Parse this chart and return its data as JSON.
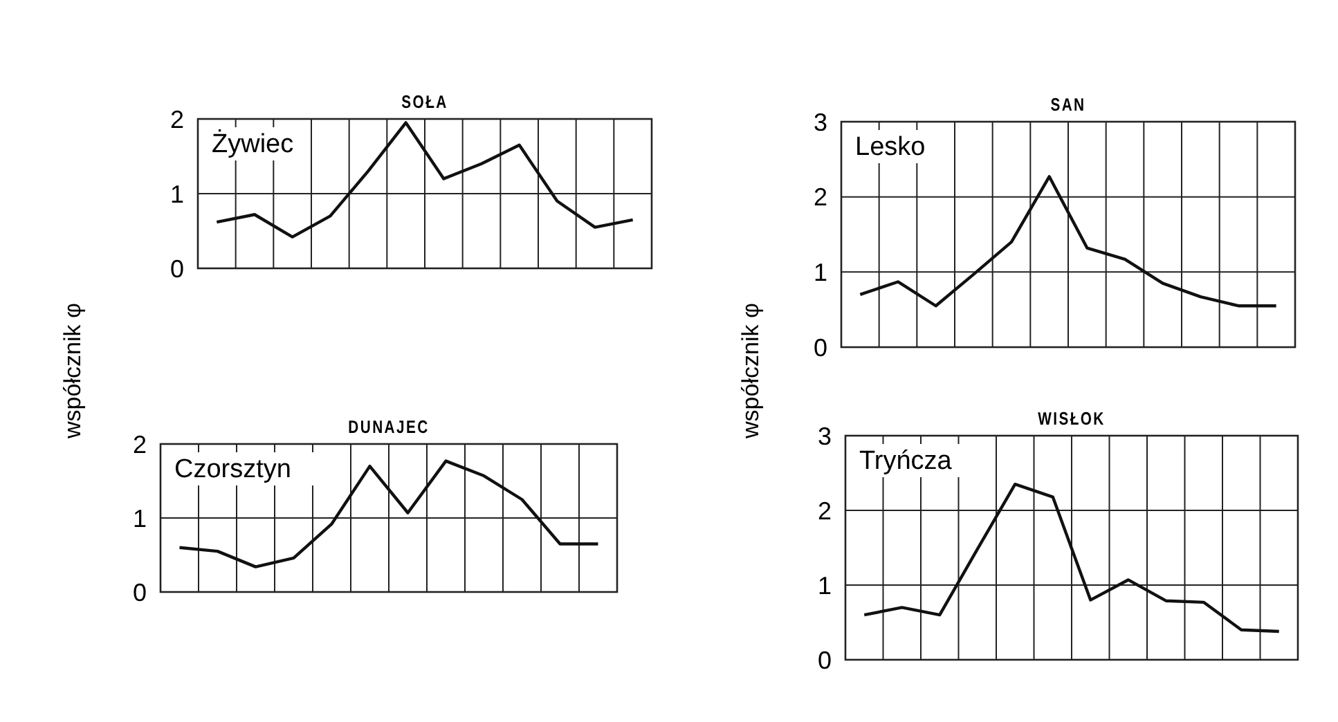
{
  "chart_data": [
    {
      "type": "line",
      "title": "SOŁA",
      "ylabel": "współcznik φ",
      "annotations": [
        "Żywiec"
      ],
      "categories": [
        null,
        null,
        null,
        null,
        null,
        null,
        null,
        null,
        null,
        null,
        null,
        null
      ],
      "series": [
        {
          "color": "#111111",
          "values": [
            0.62,
            0.72,
            0.42,
            0.7,
            1.3,
            1.95,
            1.2,
            1.4,
            1.65,
            0.9,
            0.55,
            0.65
          ]
        }
      ],
      "ylim": [
        0,
        2
      ],
      "yticks": [
        0,
        1,
        2
      ],
      "grid": true,
      "marker": "none",
      "line_style": "solid"
    },
    {
      "type": "line",
      "title": "SAN",
      "ylabel": "współcznik φ",
      "annotations": [
        "Lesko"
      ],
      "categories": [
        null,
        null,
        null,
        null,
        null,
        null,
        null,
        null,
        null,
        null,
        null,
        null
      ],
      "series": [
        {
          "color": "#111111",
          "values": [
            0.7,
            0.87,
            0.55,
            0.97,
            1.4,
            2.27,
            1.32,
            1.17,
            0.85,
            0.67,
            0.55,
            0.55
          ]
        }
      ],
      "ylim": [
        0,
        3
      ],
      "yticks": [
        0,
        1,
        2,
        3
      ],
      "grid": true,
      "marker": "none",
      "line_style": "solid"
    },
    {
      "type": "line",
      "title": "DUNAJEC",
      "annotations": [
        "Czorsztyn"
      ],
      "categories": [
        null,
        null,
        null,
        null,
        null,
        null,
        null,
        null,
        null,
        null,
        null,
        null
      ],
      "series": [
        {
          "color": "#111111",
          "values": [
            0.6,
            0.55,
            0.34,
            0.46,
            0.92,
            1.7,
            1.07,
            1.77,
            1.57,
            1.25,
            0.65,
            0.65
          ]
        }
      ],
      "ylim": [
        0,
        2
      ],
      "yticks": [
        0,
        1,
        2
      ],
      "grid": true,
      "marker": "none",
      "line_style": "solid"
    },
    {
      "type": "line",
      "title": "WISŁOK",
      "annotations": [
        "Tryńcza"
      ],
      "categories": [
        null,
        null,
        null,
        null,
        null,
        null,
        null,
        null,
        null,
        null,
        null,
        null
      ],
      "series": [
        {
          "color": "#111111",
          "values": [
            0.6,
            0.7,
            0.6,
            1.48,
            2.35,
            2.18,
            0.8,
            1.07,
            0.79,
            0.77,
            0.4,
            0.38
          ]
        }
      ],
      "ylim": [
        0,
        3
      ],
      "yticks": [
        0,
        1,
        2,
        3
      ],
      "grid": true,
      "marker": "none",
      "line_style": "solid"
    }
  ]
}
